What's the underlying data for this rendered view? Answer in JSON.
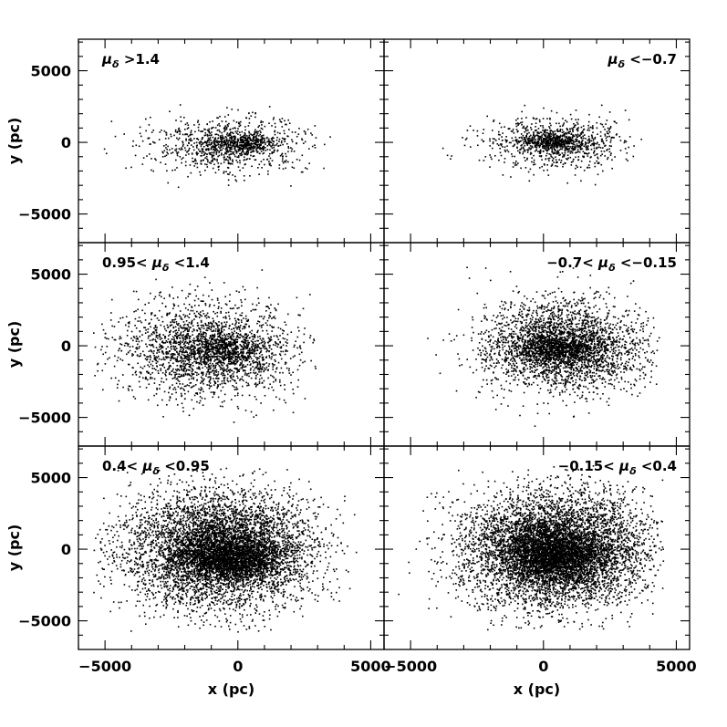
{
  "chart_data": {
    "type": "scatter",
    "layout": "3 rows x 2 columns, shared axes",
    "xlabel": "x (pc)",
    "ylabel": "y (pc)",
    "xlim": [
      -6000,
      5500
    ],
    "ylim": [
      -7000,
      7200
    ],
    "xticks": [
      -5000,
      0,
      5000
    ],
    "xtick_labels": [
      "−5000",
      "0",
      "5000"
    ],
    "yticks": [
      -5000,
      0,
      5000
    ],
    "ytick_labels": [
      "−5000",
      "0",
      "5000"
    ],
    "marker_color": "#000000",
    "grid": false,
    "panels": [
      {
        "id": "top-left",
        "label": {
          "pre": "",
          "sym": "μ",
          "sub": "δ",
          "post": " >1.4"
        },
        "label_text": "μδ >1.4",
        "n_points": 1200,
        "cluster": {
          "cx": -300,
          "cy": -100,
          "sx": 1500,
          "sy": 1000
        },
        "core": {
          "cx": 200,
          "cy": 0,
          "sx": 600,
          "sy": 350,
          "fraction": 0.25
        },
        "x_range": [
          -5600,
          3500
        ],
        "y_range": [
          -4800,
          5400
        ]
      },
      {
        "id": "top-right",
        "label": {
          "pre": "",
          "sym": "μ",
          "sub": "δ",
          "post": " <−0.7"
        },
        "label_text": "μδ <−0.7",
        "n_points": 1200,
        "cluster": {
          "cx": 500,
          "cy": 0,
          "sx": 1300,
          "sy": 900
        },
        "core": {
          "cx": 300,
          "cy": 100,
          "sx": 600,
          "sy": 300,
          "fraction": 0.3
        },
        "x_range": [
          -4200,
          3800
        ],
        "y_range": [
          -4800,
          5000
        ]
      },
      {
        "id": "middle-left",
        "label": {
          "pre": "0.95< ",
          "sym": "μ",
          "sub": "δ",
          "post": " <1.4"
        },
        "label_text": "0.95< μδ <1.4",
        "n_points": 2600,
        "cluster": {
          "cx": -1200,
          "cy": -200,
          "sx": 1700,
          "sy": 1700
        },
        "core": {
          "cx": -600,
          "cy": -300,
          "sx": 900,
          "sy": 600,
          "fraction": 0.2
        },
        "x_range": [
          -5500,
          3000
        ],
        "y_range": [
          -5400,
          5800
        ]
      },
      {
        "id": "middle-right",
        "label": {
          "pre": "−0.7< ",
          "sym": "μ",
          "sub": "δ",
          "post": " <−0.15"
        },
        "label_text": "−0.7< μδ <−0.15",
        "n_points": 3400,
        "cluster": {
          "cx": 700,
          "cy": 0,
          "sx": 1500,
          "sy": 1600
        },
        "core": {
          "cx": 400,
          "cy": -200,
          "sx": 900,
          "sy": 500,
          "fraction": 0.2
        },
        "x_range": [
          -4500,
          4400
        ],
        "y_range": [
          -6200,
          5800
        ]
      },
      {
        "id": "bottom-left",
        "label": {
          "pre": "0.4< ",
          "sym": "μ",
          "sub": "δ",
          "post": " <0.95"
        },
        "label_text": "0.4< μδ <0.95",
        "n_points": 7000,
        "cluster": {
          "cx": -700,
          "cy": 0,
          "sx": 1700,
          "sy": 2000
        },
        "core": {
          "cx": -200,
          "cy": -600,
          "sx": 900,
          "sy": 700,
          "fraction": 0.2
        },
        "x_range": [
          -5500,
          4500
        ],
        "y_range": [
          -5800,
          6000
        ]
      },
      {
        "id": "bottom-right",
        "label": {
          "pre": "−0.15< ",
          "sym": "μ",
          "sub": "δ",
          "post": " <0.4"
        },
        "label_text": "−0.15< μδ <0.4",
        "n_points": 7600,
        "cluster": {
          "cx": 400,
          "cy": 0,
          "sx": 1700,
          "sy": 2000
        },
        "core": {
          "cx": 400,
          "cy": -500,
          "sx": 1000,
          "sy": 800,
          "fraction": 0.2
        },
        "x_range": [
          -5500,
          4500
        ],
        "y_range": [
          -5800,
          6000
        ]
      }
    ]
  }
}
